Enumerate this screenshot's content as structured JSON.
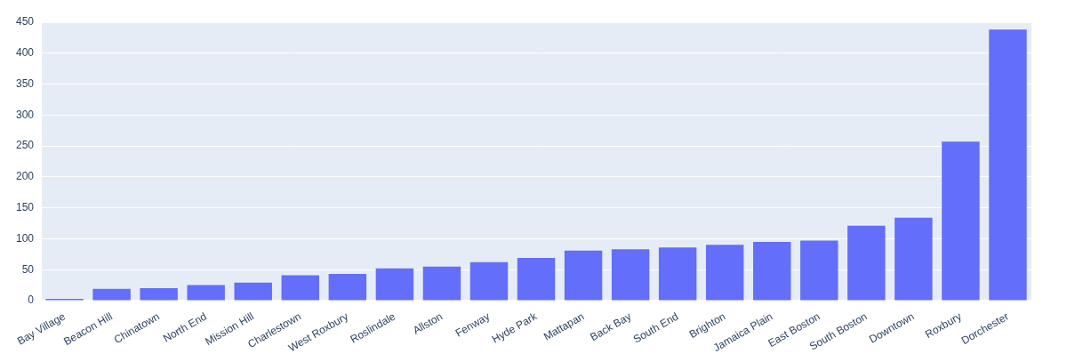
{
  "chart_data": {
    "type": "bar",
    "categories": [
      "Bay Village",
      "Beacon Hill",
      "Chinatown",
      "North End",
      "Mission Hill",
      "Charlestown",
      "West Roxbury",
      "Roslindale",
      "Allston",
      "Fenway",
      "Hyde Park",
      "Mattapan",
      "Back Bay",
      "South End",
      "Brighton",
      "Jamaica Plain",
      "East Boston",
      "South Boston",
      "Downtown",
      "Roxbury",
      "Dorchester"
    ],
    "values": [
      3,
      19,
      20,
      25,
      29,
      41,
      43,
      52,
      55,
      62,
      69,
      81,
      83,
      86,
      90,
      95,
      97,
      121,
      134,
      257,
      438
    ],
    "color": "#636efa",
    "ylim": [
      0,
      450
    ],
    "yticks": [
      0,
      50,
      100,
      150,
      200,
      250,
      300,
      350,
      400,
      450
    ],
    "grid": true
  }
}
